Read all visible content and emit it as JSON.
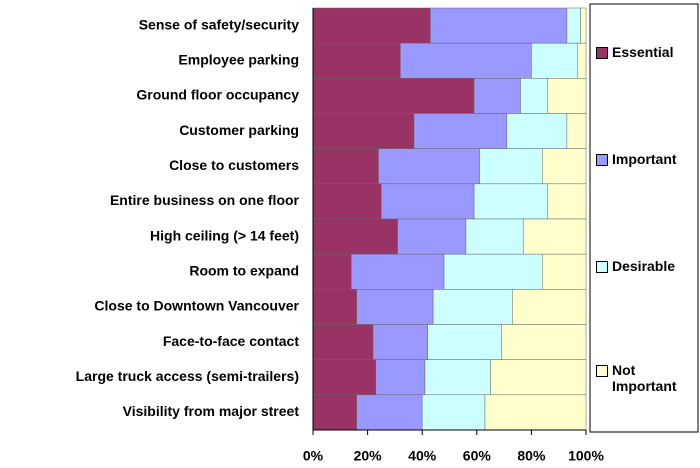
{
  "chart_data": {
    "type": "stacked-barh",
    "categories": [
      "Sense of safety/security",
      "Employee parking",
      "Ground floor occupancy",
      "Customer parking",
      "Close to customers",
      "Entire business on one floor",
      "High ceiling (> 14 feet)",
      "Room to expand",
      "Close to Downtown Vancouver",
      "Face-to-face contact",
      "Large truck access (semi-trailers)",
      "Visibility from major street"
    ],
    "series": [
      {
        "name": "Essential",
        "color": "#993366",
        "values": [
          43,
          32,
          59,
          37,
          24,
          25,
          31,
          14,
          16,
          22,
          23,
          16
        ]
      },
      {
        "name": "Important",
        "color": "#9999ff",
        "values": [
          50,
          48,
          17,
          34,
          37,
          34,
          25,
          34,
          28,
          20,
          18,
          24
        ]
      },
      {
        "name": "Desirable",
        "color": "#ccffff",
        "values": [
          5,
          17,
          10,
          22,
          23,
          27,
          21,
          36,
          29,
          27,
          24,
          23
        ]
      },
      {
        "name": "Not Important",
        "color": "#ffffcc",
        "values": [
          2,
          3,
          14,
          7,
          16,
          14,
          23,
          16,
          27,
          31,
          35,
          37
        ]
      }
    ],
    "xlim": [
      0,
      100
    ],
    "xticks": [
      {
        "value": 0,
        "label": "0%"
      },
      {
        "value": 20,
        "label": "20%"
      },
      {
        "value": 40,
        "label": "40%"
      },
      {
        "value": 60,
        "label": "60%"
      },
      {
        "value": 80,
        "label": "80%"
      },
      {
        "value": 100,
        "label": "100%"
      }
    ],
    "legend": "right"
  }
}
